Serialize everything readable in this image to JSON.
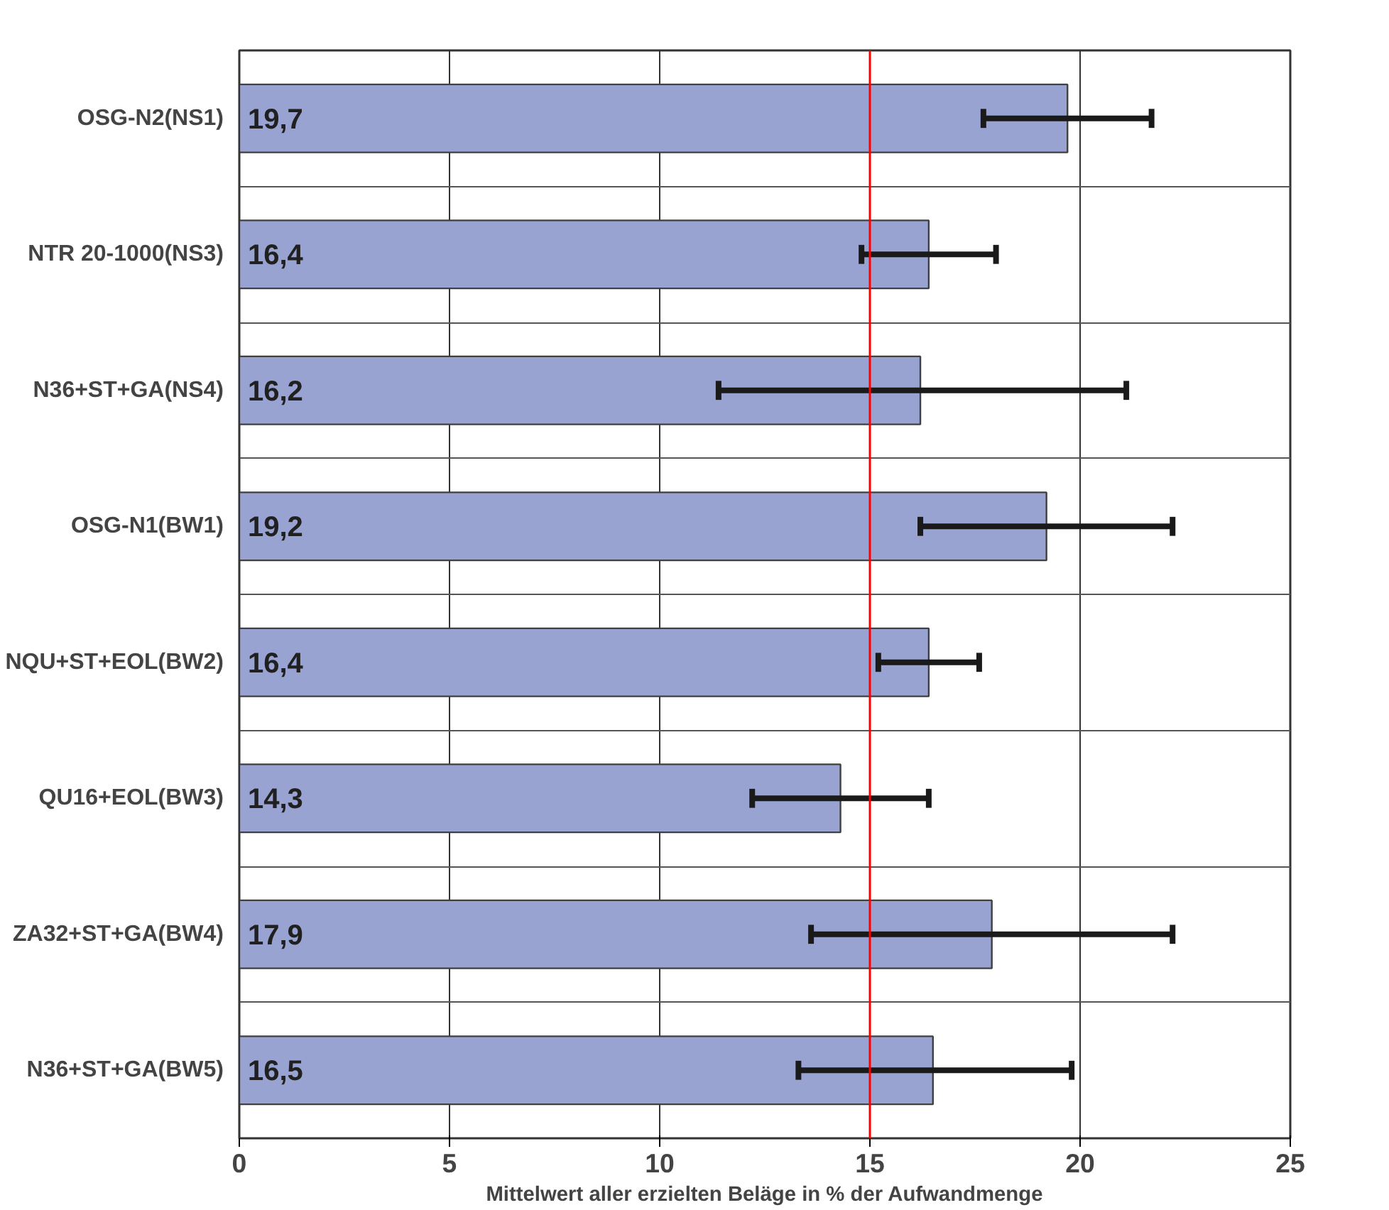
{
  "chart_data": {
    "type": "bar",
    "orientation": "horizontal",
    "xlabel": "Mittelwert aller erzielten Beläge in % der Aufwandmenge",
    "categories": [
      "OSG-N2(NS1)",
      "NTR 20-1000(NS3)",
      "N36+ST+GA(NS4)",
      "OSG-N1(BW1)",
      "NQU+ST+EOL(BW2)",
      "QU16+EOL(BW3)",
      "ZA32+ST+GA(BW4)",
      "N36+ST+GA(BW5)"
    ],
    "values": [
      19.7,
      16.4,
      16.2,
      19.2,
      16.4,
      14.3,
      17.9,
      16.5
    ],
    "value_labels": [
      "19,7",
      "16,4",
      "16,2",
      "19,2",
      "16,4",
      "14,3",
      "17,9",
      "16,5"
    ],
    "errors": [
      [
        17.7,
        21.7
      ],
      [
        14.8,
        18.0
      ],
      [
        11.4,
        21.1
      ],
      [
        16.2,
        22.2
      ],
      [
        15.2,
        17.6
      ],
      [
        12.2,
        16.4
      ],
      [
        13.6,
        22.2
      ],
      [
        13.3,
        19.8
      ]
    ],
    "color": "#99a3d1",
    "xlim": [
      0,
      25
    ],
    "xticks": [
      0,
      5,
      10,
      15,
      20,
      25
    ],
    "grid": true,
    "ref_lines": [
      {
        "axis": "x",
        "value": 15,
        "color": "#ff0000"
      }
    ]
  }
}
